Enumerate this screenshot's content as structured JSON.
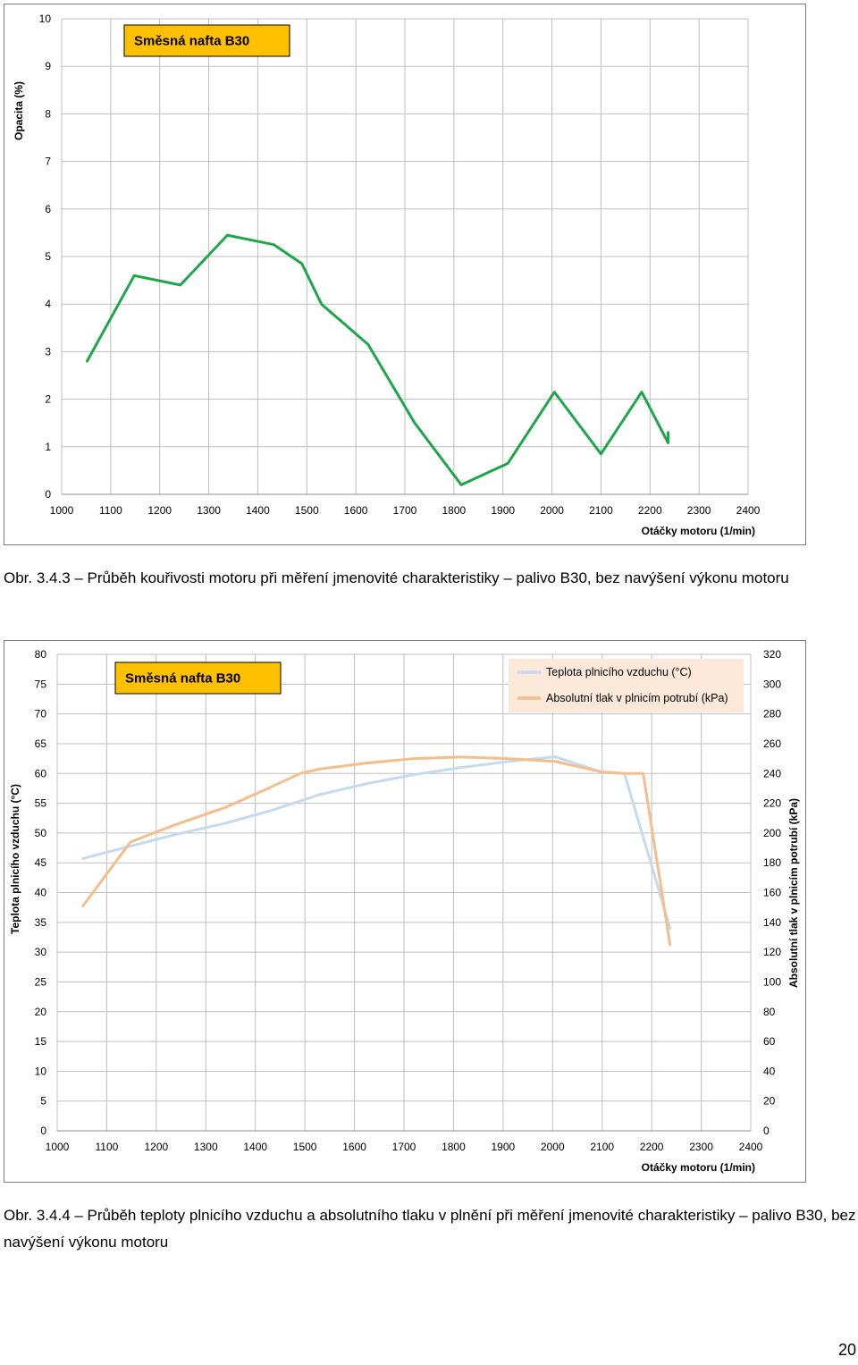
{
  "captions": {
    "fig1": "Obr. 3.4.3 – Průběh kouřivosti motoru při měření jmenovité charakteristiky – palivo B30, bez navýšení výkonu motoru",
    "fig2": "Obr. 3.4.4 – Průběh teploty plnicího vzduchu a absolutního tlaku v plnění při měření jmenovité charakteristiky – palivo B30, bez navýšení výkonu motoru"
  },
  "page_number": "20",
  "colors": {
    "opacity_line": "#1fa64a",
    "temperature_line": "#c5d9ef",
    "pressure_line": "#f4be8c",
    "badge_fill": "#ffc000",
    "legend_fill": "#fde9d9",
    "grid": "#bfbfbf"
  },
  "chart_data": [
    {
      "type": "line",
      "badge": "Směsná nafta B30",
      "xlabel": "Otáčky motoru (1/min)",
      "ylabel": "Opacita (%)",
      "xlim": [
        1000,
        2400
      ],
      "ylim": [
        0,
        10
      ],
      "x_ticks": [
        "1000",
        "1100",
        "1200",
        "1300",
        "1400",
        "1500",
        "1600",
        "1700",
        "1800",
        "1900",
        "2000",
        "2100",
        "2200",
        "2300",
        "2400"
      ],
      "y_ticks": [
        "0",
        "1",
        "2",
        "3",
        "4",
        "5",
        "6",
        "7",
        "8",
        "9",
        "10"
      ],
      "grid": true,
      "series": [
        {
          "color": "#1fa64a",
          "x": [
            1052,
            1148,
            1242,
            1338,
            1433,
            1490,
            1530,
            1625,
            1720,
            1815,
            1910,
            2005,
            2100,
            2183,
            2237,
            2237
          ],
          "y": [
            2.8,
            4.6,
            4.4,
            5.45,
            5.25,
            4.85,
            4.0,
            3.15,
            1.5,
            0.2,
            0.65,
            2.15,
            0.85,
            2.15,
            1.08,
            1.3
          ]
        }
      ]
    },
    {
      "type": "line",
      "badge": "Směsná nafta B30",
      "xlabel": "Otáčky motoru (1/min)",
      "ylabel": "Teplota plnicího vzduchu (°C)",
      "y2label": "Absolutní tlak v plnicím potrubí (kPa)",
      "xlim": [
        1000,
        2400
      ],
      "ylim": [
        0,
        80
      ],
      "y2lim": [
        0,
        320
      ],
      "x_ticks": [
        "1000",
        "1100",
        "1200",
        "1300",
        "1400",
        "1500",
        "1600",
        "1700",
        "1800",
        "1900",
        "2000",
        "2100",
        "2200",
        "2300",
        "2400"
      ],
      "y_ticks": [
        "0",
        "5",
        "10",
        "15",
        "20",
        "25",
        "30",
        "35",
        "40",
        "45",
        "50",
        "55",
        "60",
        "65",
        "70",
        "75",
        "80"
      ],
      "y2_ticks": [
        "0",
        "20",
        "40",
        "60",
        "80",
        "100",
        "120",
        "140",
        "160",
        "180",
        "200",
        "220",
        "240",
        "260",
        "280",
        "300",
        "320"
      ],
      "grid": true,
      "legend_position": "top-right",
      "series": [
        {
          "name": "Teplota plnicího vzduchu (°C)",
          "axis": "left",
          "color": "#c5d9ef",
          "x": [
            1052,
            1148,
            1242,
            1338,
            1433,
            1528,
            1625,
            1720,
            1815,
            1910,
            2005,
            2100,
            2145,
            2237
          ],
          "y": [
            45.7,
            47.8,
            49.8,
            51.6,
            53.8,
            56.4,
            58.3,
            59.8,
            61.0,
            62.0,
            62.8,
            60.2,
            60.0,
            34.0
          ]
        },
        {
          "name": "Absolutní tlak v plnicím potrubí (kPa)",
          "axis": "right",
          "color": "#f4be8c",
          "x": [
            1052,
            1148,
            1242,
            1338,
            1433,
            1490,
            1530,
            1625,
            1720,
            1815,
            1910,
            2005,
            2100,
            2145,
            2183,
            2237
          ],
          "y": [
            151,
            194,
            206,
            217,
            231,
            240,
            243,
            247,
            250,
            251,
            250,
            248,
            241,
            240,
            240,
            125
          ]
        }
      ]
    }
  ]
}
